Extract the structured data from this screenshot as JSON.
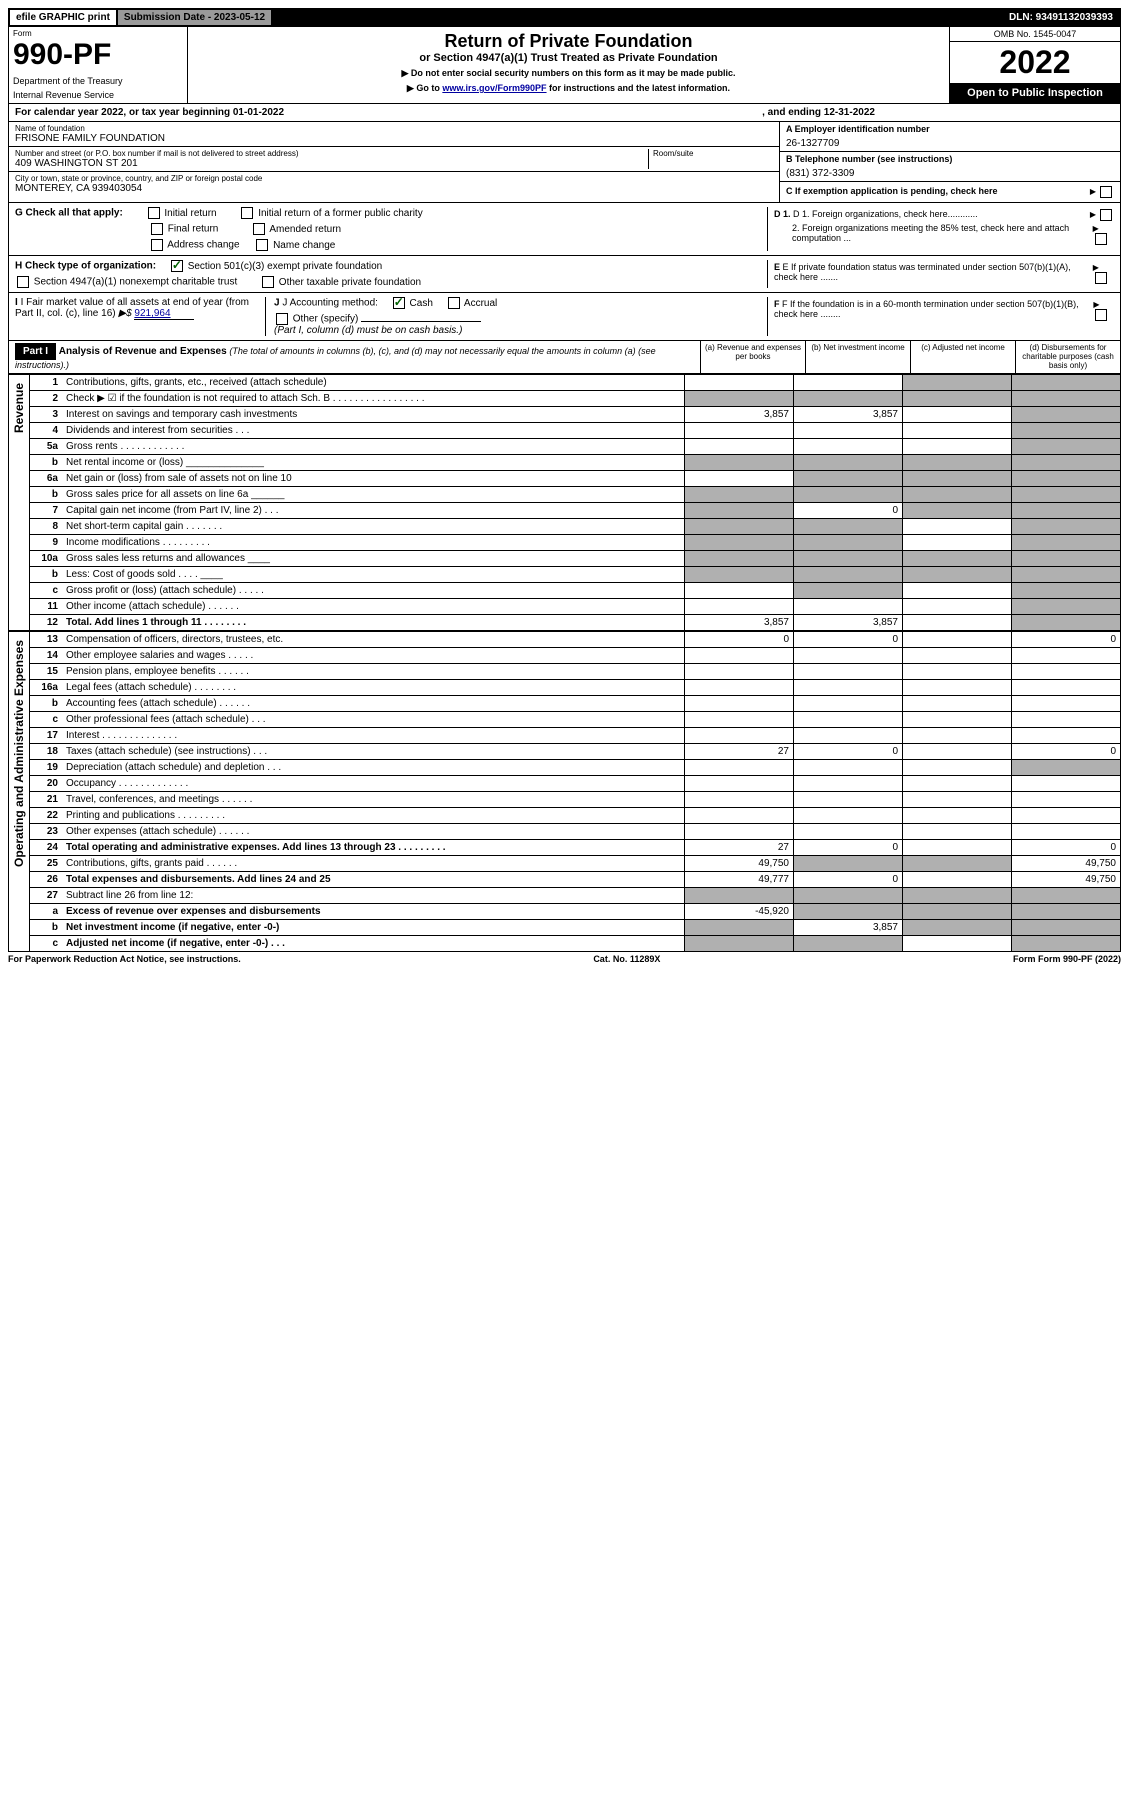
{
  "top": {
    "efile": "efile GRAPHIC print",
    "submission_label": "Submission Date - 2023-05-12",
    "dln": "DLN: 93491132039393"
  },
  "header": {
    "form_label": "Form",
    "form_number": "990-PF",
    "dept1": "Department of the Treasury",
    "dept2": "Internal Revenue Service",
    "title": "Return of Private Foundation",
    "subtitle": "or Section 4947(a)(1) Trust Treated as Private Foundation",
    "instr1": "▶ Do not enter social security numbers on this form as it may be made public.",
    "instr2_pre": "▶ Go to ",
    "instr2_link": "www.irs.gov/Form990PF",
    "instr2_post": " for instructions and the latest information.",
    "omb": "OMB No. 1545-0047",
    "year": "2022",
    "open": "Open to Public Inspection"
  },
  "calyear": {
    "text": "For calendar year 2022, or tax year beginning 01-01-2022",
    "ending": ", and ending 12-31-2022"
  },
  "entity": {
    "name_label": "Name of foundation",
    "name": "FRISONE FAMILY FOUNDATION",
    "addr_label": "Number and street (or P.O. box number if mail is not delivered to street address)",
    "addr": "409 WASHINGTON ST 201",
    "room_label": "Room/suite",
    "city_label": "City or town, state or province, country, and ZIP or foreign postal code",
    "city": "MONTEREY, CA  939403054",
    "a_label": "A Employer identification number",
    "a_value": "26-1327709",
    "b_label": "B Telephone number (see instructions)",
    "b_value": "(831) 372-3309",
    "c_label": "C If exemption application is pending, check here"
  },
  "checks": {
    "g_label": "G Check all that apply:",
    "g_initial": "Initial return",
    "g_initial_former": "Initial return of a former public charity",
    "g_final": "Final return",
    "g_amended": "Amended return",
    "g_address": "Address change",
    "g_name": "Name change",
    "h_label": "H Check type of organization:",
    "h_501c3": "Section 501(c)(3) exempt private foundation",
    "h_4947": "Section 4947(a)(1) nonexempt charitable trust",
    "h_other_tax": "Other taxable private foundation",
    "i_label": "I Fair market value of all assets at end of year (from Part II, col. (c), line 16)",
    "i_value": "921,964",
    "j_label": "J Accounting method:",
    "j_cash": "Cash",
    "j_accrual": "Accrual",
    "j_other": "Other (specify)",
    "j_note": "(Part I, column (d) must be on cash basis.)",
    "d1": "D 1. Foreign organizations, check here............",
    "d2": "2. Foreign organizations meeting the 85% test, check here and attach computation ...",
    "e_label": "E  If private foundation status was terminated under section 507(b)(1)(A), check here .......",
    "f_label": "F  If the foundation is in a 60-month termination under section 507(b)(1)(B), check here ........"
  },
  "part1": {
    "header": "Part I",
    "title": "Analysis of Revenue and Expenses",
    "title_note": " (The total of amounts in columns (b), (c), and (d) may not necessarily equal the amounts in column (a) (see instructions).)",
    "col_a": "(a) Revenue and expenses per books",
    "col_b": "(b) Net investment income",
    "col_c": "(c) Adjusted net income",
    "col_d": "(d) Disbursements for charitable purposes (cash basis only)"
  },
  "side_labels": {
    "revenue": "Revenue",
    "expenses": "Operating and Administrative Expenses"
  },
  "rows": [
    {
      "n": "1",
      "d": "Contributions, gifts, grants, etc., received (attach schedule)",
      "a": "",
      "b": "",
      "c": "shaded",
      "dd": "shaded"
    },
    {
      "n": "2",
      "d": "Check ▶ ☑ if the foundation is not required to attach Sch. B  .  .  .  .  .  .  .  .  .  .  .  .  .  .  .  .  .",
      "a": "shaded",
      "b": "shaded",
      "c": "shaded",
      "dd": "shaded"
    },
    {
      "n": "3",
      "d": "Interest on savings and temporary cash investments",
      "a": "3,857",
      "b": "3,857",
      "c": "",
      "dd": "shaded"
    },
    {
      "n": "4",
      "d": "Dividends and interest from securities   .   .   .",
      "a": "",
      "b": "",
      "c": "",
      "dd": "shaded"
    },
    {
      "n": "5a",
      "d": "Gross rents   .   .   .   .   .   .   .   .   .   .   .   .",
      "a": "",
      "b": "",
      "c": "",
      "dd": "shaded"
    },
    {
      "n": "b",
      "d": "Net rental income or (loss) ______________",
      "a": "shaded",
      "b": "shaded",
      "c": "shaded",
      "dd": "shaded"
    },
    {
      "n": "6a",
      "d": "Net gain or (loss) from sale of assets not on line 10",
      "a": "",
      "b": "shaded",
      "c": "shaded",
      "dd": "shaded"
    },
    {
      "n": "b",
      "d": "Gross sales price for all assets on line 6a ______",
      "a": "shaded",
      "b": "shaded",
      "c": "shaded",
      "dd": "shaded"
    },
    {
      "n": "7",
      "d": "Capital gain net income (from Part IV, line 2)   .   .   .",
      "a": "shaded",
      "b": "0",
      "c": "shaded",
      "dd": "shaded"
    },
    {
      "n": "8",
      "d": "Net short-term capital gain  .   .   .   .   .   .   .",
      "a": "shaded",
      "b": "shaded",
      "c": "",
      "dd": "shaded"
    },
    {
      "n": "9",
      "d": "Income modifications  .   .   .   .   .   .   .   .   .",
      "a": "shaded",
      "b": "shaded",
      "c": "",
      "dd": "shaded"
    },
    {
      "n": "10a",
      "d": "Gross sales less returns and allowances  ____",
      "a": "shaded",
      "b": "shaded",
      "c": "shaded",
      "dd": "shaded"
    },
    {
      "n": "b",
      "d": "Less: Cost of goods sold   .   .   .   .   ____",
      "a": "shaded",
      "b": "shaded",
      "c": "shaded",
      "dd": "shaded"
    },
    {
      "n": "c",
      "d": "Gross profit or (loss) (attach schedule)   .   .   .   .   .",
      "a": "",
      "b": "shaded",
      "c": "",
      "dd": "shaded"
    },
    {
      "n": "11",
      "d": "Other income (attach schedule)   .   .   .   .   .   .",
      "a": "",
      "b": "",
      "c": "",
      "dd": "shaded"
    },
    {
      "n": "12",
      "d": "Total. Add lines 1 through 11   .   .   .   .   .   .   .   .",
      "a": "3,857",
      "b": "3,857",
      "c": "",
      "dd": "shaded",
      "bold": true
    }
  ],
  "exp_rows": [
    {
      "n": "13",
      "d": "Compensation of officers, directors, trustees, etc.",
      "a": "0",
      "b": "0",
      "c": "",
      "dd": "0"
    },
    {
      "n": "14",
      "d": "Other employee salaries and wages   .   .   .   .   .",
      "a": "",
      "b": "",
      "c": "",
      "dd": ""
    },
    {
      "n": "15",
      "d": "Pension plans, employee benefits  .   .   .   .   .   .",
      "a": "",
      "b": "",
      "c": "",
      "dd": ""
    },
    {
      "n": "16a",
      "d": "Legal fees (attach schedule)  .   .   .   .   .   .   .   .",
      "a": "",
      "b": "",
      "c": "",
      "dd": ""
    },
    {
      "n": "b",
      "d": "Accounting fees (attach schedule)  .   .   .   .   .   .",
      "a": "",
      "b": "",
      "c": "",
      "dd": ""
    },
    {
      "n": "c",
      "d": "Other professional fees (attach schedule)   .   .   .",
      "a": "",
      "b": "",
      "c": "",
      "dd": ""
    },
    {
      "n": "17",
      "d": "Interest  .   .   .   .   .   .   .   .   .   .   .   .   .   .",
      "a": "",
      "b": "",
      "c": "",
      "dd": ""
    },
    {
      "n": "18",
      "d": "Taxes (attach schedule) (see instructions)   .   .   .",
      "a": "27",
      "b": "0",
      "c": "",
      "dd": "0"
    },
    {
      "n": "19",
      "d": "Depreciation (attach schedule) and depletion   .   .   .",
      "a": "",
      "b": "",
      "c": "",
      "dd": "shaded"
    },
    {
      "n": "20",
      "d": "Occupancy  .   .   .   .   .   .   .   .   .   .   .   .   .",
      "a": "",
      "b": "",
      "c": "",
      "dd": ""
    },
    {
      "n": "21",
      "d": "Travel, conferences, and meetings  .   .   .   .   .   .",
      "a": "",
      "b": "",
      "c": "",
      "dd": ""
    },
    {
      "n": "22",
      "d": "Printing and publications  .   .   .   .   .   .   .   .   .",
      "a": "",
      "b": "",
      "c": "",
      "dd": ""
    },
    {
      "n": "23",
      "d": "Other expenses (attach schedule)  .   .   .   .   .   .",
      "a": "",
      "b": "",
      "c": "",
      "dd": ""
    },
    {
      "n": "24",
      "d": "Total operating and administrative expenses. Add lines 13 through 23   .   .   .   .   .   .   .   .   .",
      "a": "27",
      "b": "0",
      "c": "",
      "dd": "0",
      "bold": true
    },
    {
      "n": "25",
      "d": "Contributions, gifts, grants paid   .   .   .   .   .   .",
      "a": "49,750",
      "b": "shaded",
      "c": "shaded",
      "dd": "49,750"
    },
    {
      "n": "26",
      "d": "Total expenses and disbursements. Add lines 24 and 25",
      "a": "49,777",
      "b": "0",
      "c": "",
      "dd": "49,750",
      "bold": true
    },
    {
      "n": "27",
      "d": "Subtract line 26 from line 12:",
      "a": "shaded",
      "b": "shaded",
      "c": "shaded",
      "dd": "shaded"
    },
    {
      "n": "a",
      "d": "Excess of revenue over expenses and disbursements",
      "a": "-45,920",
      "b": "shaded",
      "c": "shaded",
      "dd": "shaded",
      "bold": true
    },
    {
      "n": "b",
      "d": "Net investment income (if negative, enter -0-)",
      "a": "shaded",
      "b": "3,857",
      "c": "shaded",
      "dd": "shaded",
      "bold": true
    },
    {
      "n": "c",
      "d": "Adjusted net income (if negative, enter -0-)   .   .   .",
      "a": "shaded",
      "b": "shaded",
      "c": "",
      "dd": "shaded",
      "bold": true
    }
  ],
  "footer": {
    "left": "For Paperwork Reduction Act Notice, see instructions.",
    "center": "Cat. No. 11289X",
    "right": "Form 990-PF (2022)"
  }
}
